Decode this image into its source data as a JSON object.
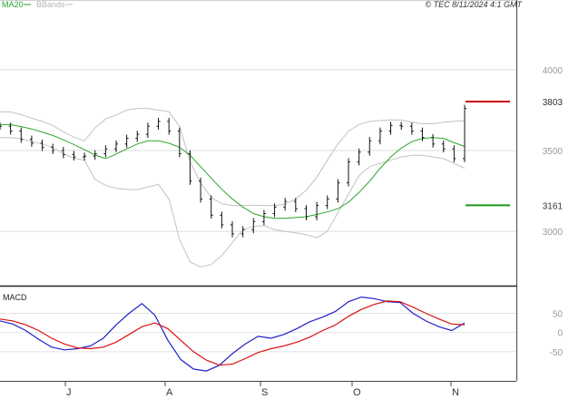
{
  "header": {
    "legend_ma": "MA20",
    "legend_bb": "BBands",
    "copyright": "© TEC 8/11/2024 4:1 GMT"
  },
  "colors": {
    "ma": "#2aa52a",
    "bands": "#c2c2c2",
    "bars": "#111111",
    "resistance": "#cc0000",
    "support": "#1a9a1a",
    "macd": "#2020cc",
    "signal": "#dd1111"
  },
  "chart_data": [
    {
      "type": "line",
      "panel": "price",
      "y_ticks": [
        "4000",
        "3500",
        "3000"
      ],
      "y_tick_values": [
        4000,
        3500,
        3000
      ],
      "ylim": [
        2720,
        4330
      ],
      "x_labels": [
        "J",
        "A",
        "S",
        "O",
        "N"
      ],
      "levels": [
        {
          "name": "resistance",
          "label": "3803",
          "value": 3803
        },
        {
          "name": "support",
          "label": "3161",
          "value": 3161
        }
      ],
      "series": [
        {
          "name": "MA20",
          "values": [
            3660,
            3660,
            3648,
            3633,
            3614,
            3593,
            3566,
            3537,
            3505,
            3472,
            3450,
            3478,
            3510,
            3540,
            3560,
            3560,
            3545,
            3520,
            3470,
            3400,
            3330,
            3260,
            3200,
            3150,
            3110,
            3090,
            3080,
            3080,
            3085,
            3090,
            3105,
            3120,
            3140,
            3180,
            3240,
            3310,
            3390,
            3460,
            3515,
            3555,
            3575,
            3580,
            3575,
            3548,
            3525
          ]
        },
        {
          "name": "upper band",
          "values": [
            3740,
            3738,
            3722,
            3700,
            3680,
            3655,
            3615,
            3582,
            3560,
            3640,
            3695,
            3720,
            3750,
            3760,
            3760,
            3750,
            3740,
            3650,
            3430,
            3300,
            3210,
            3170,
            3160,
            3160,
            3162,
            3160,
            3160,
            3168,
            3200,
            3255,
            3335,
            3440,
            3540,
            3620,
            3660,
            3680,
            3685,
            3690,
            3688,
            3675,
            3665,
            3665,
            3675,
            3680,
            3685
          ]
        },
        {
          "name": "lower band",
          "values": [
            3580,
            3580,
            3572,
            3555,
            3540,
            3520,
            3480,
            3452,
            3440,
            3320,
            3285,
            3265,
            3260,
            3258,
            3275,
            3290,
            3200,
            2950,
            2810,
            2780,
            2795,
            2850,
            2930,
            3010,
            3030,
            3035,
            3010,
            3000,
            2990,
            2980,
            2960,
            3000,
            3115,
            3230,
            3345,
            3400,
            3420,
            3440,
            3460,
            3470,
            3470,
            3460,
            3450,
            3420,
            3390
          ]
        },
        {
          "name": "price",
          "values": [
            3650,
            3620,
            3570,
            3545,
            3520,
            3500,
            3475,
            3460,
            3465,
            3480,
            3510,
            3540,
            3575,
            3600,
            3650,
            3680,
            3620,
            3480,
            3310,
            3200,
            3100,
            3040,
            2985,
            3010,
            3060,
            3110,
            3150,
            3185,
            3140,
            3090,
            3160,
            3200,
            3300,
            3430,
            3490,
            3560,
            3620,
            3655,
            3650,
            3620,
            3580,
            3540,
            3510,
            3450,
            3760
          ]
        }
      ]
    },
    {
      "type": "line",
      "panel": "macd",
      "title": "MACD",
      "y_ticks": [
        "50",
        "0",
        "-50"
      ],
      "y_tick_values": [
        50,
        0,
        -50
      ],
      "ylim": [
        -121,
        110
      ],
      "series": [
        {
          "name": "MACD",
          "values": [
            30,
            22,
            5,
            -18,
            -38,
            -45,
            -42,
            -35,
            -15,
            20,
            50,
            75,
            45,
            -20,
            -70,
            -95,
            -100,
            -85,
            -55,
            -30,
            -10,
            -15,
            -5,
            10,
            28,
            40,
            55,
            80,
            92,
            88,
            80,
            78,
            50,
            30,
            15,
            5,
            25
          ]
        },
        {
          "name": "signal",
          "values": [
            35,
            30,
            20,
            5,
            -15,
            -30,
            -40,
            -42,
            -38,
            -25,
            -5,
            15,
            25,
            10,
            -20,
            -50,
            -72,
            -85,
            -82,
            -68,
            -52,
            -42,
            -35,
            -25,
            -12,
            5,
            20,
            42,
            60,
            73,
            82,
            80,
            66,
            50,
            35,
            22,
            20
          ]
        }
      ]
    }
  ]
}
